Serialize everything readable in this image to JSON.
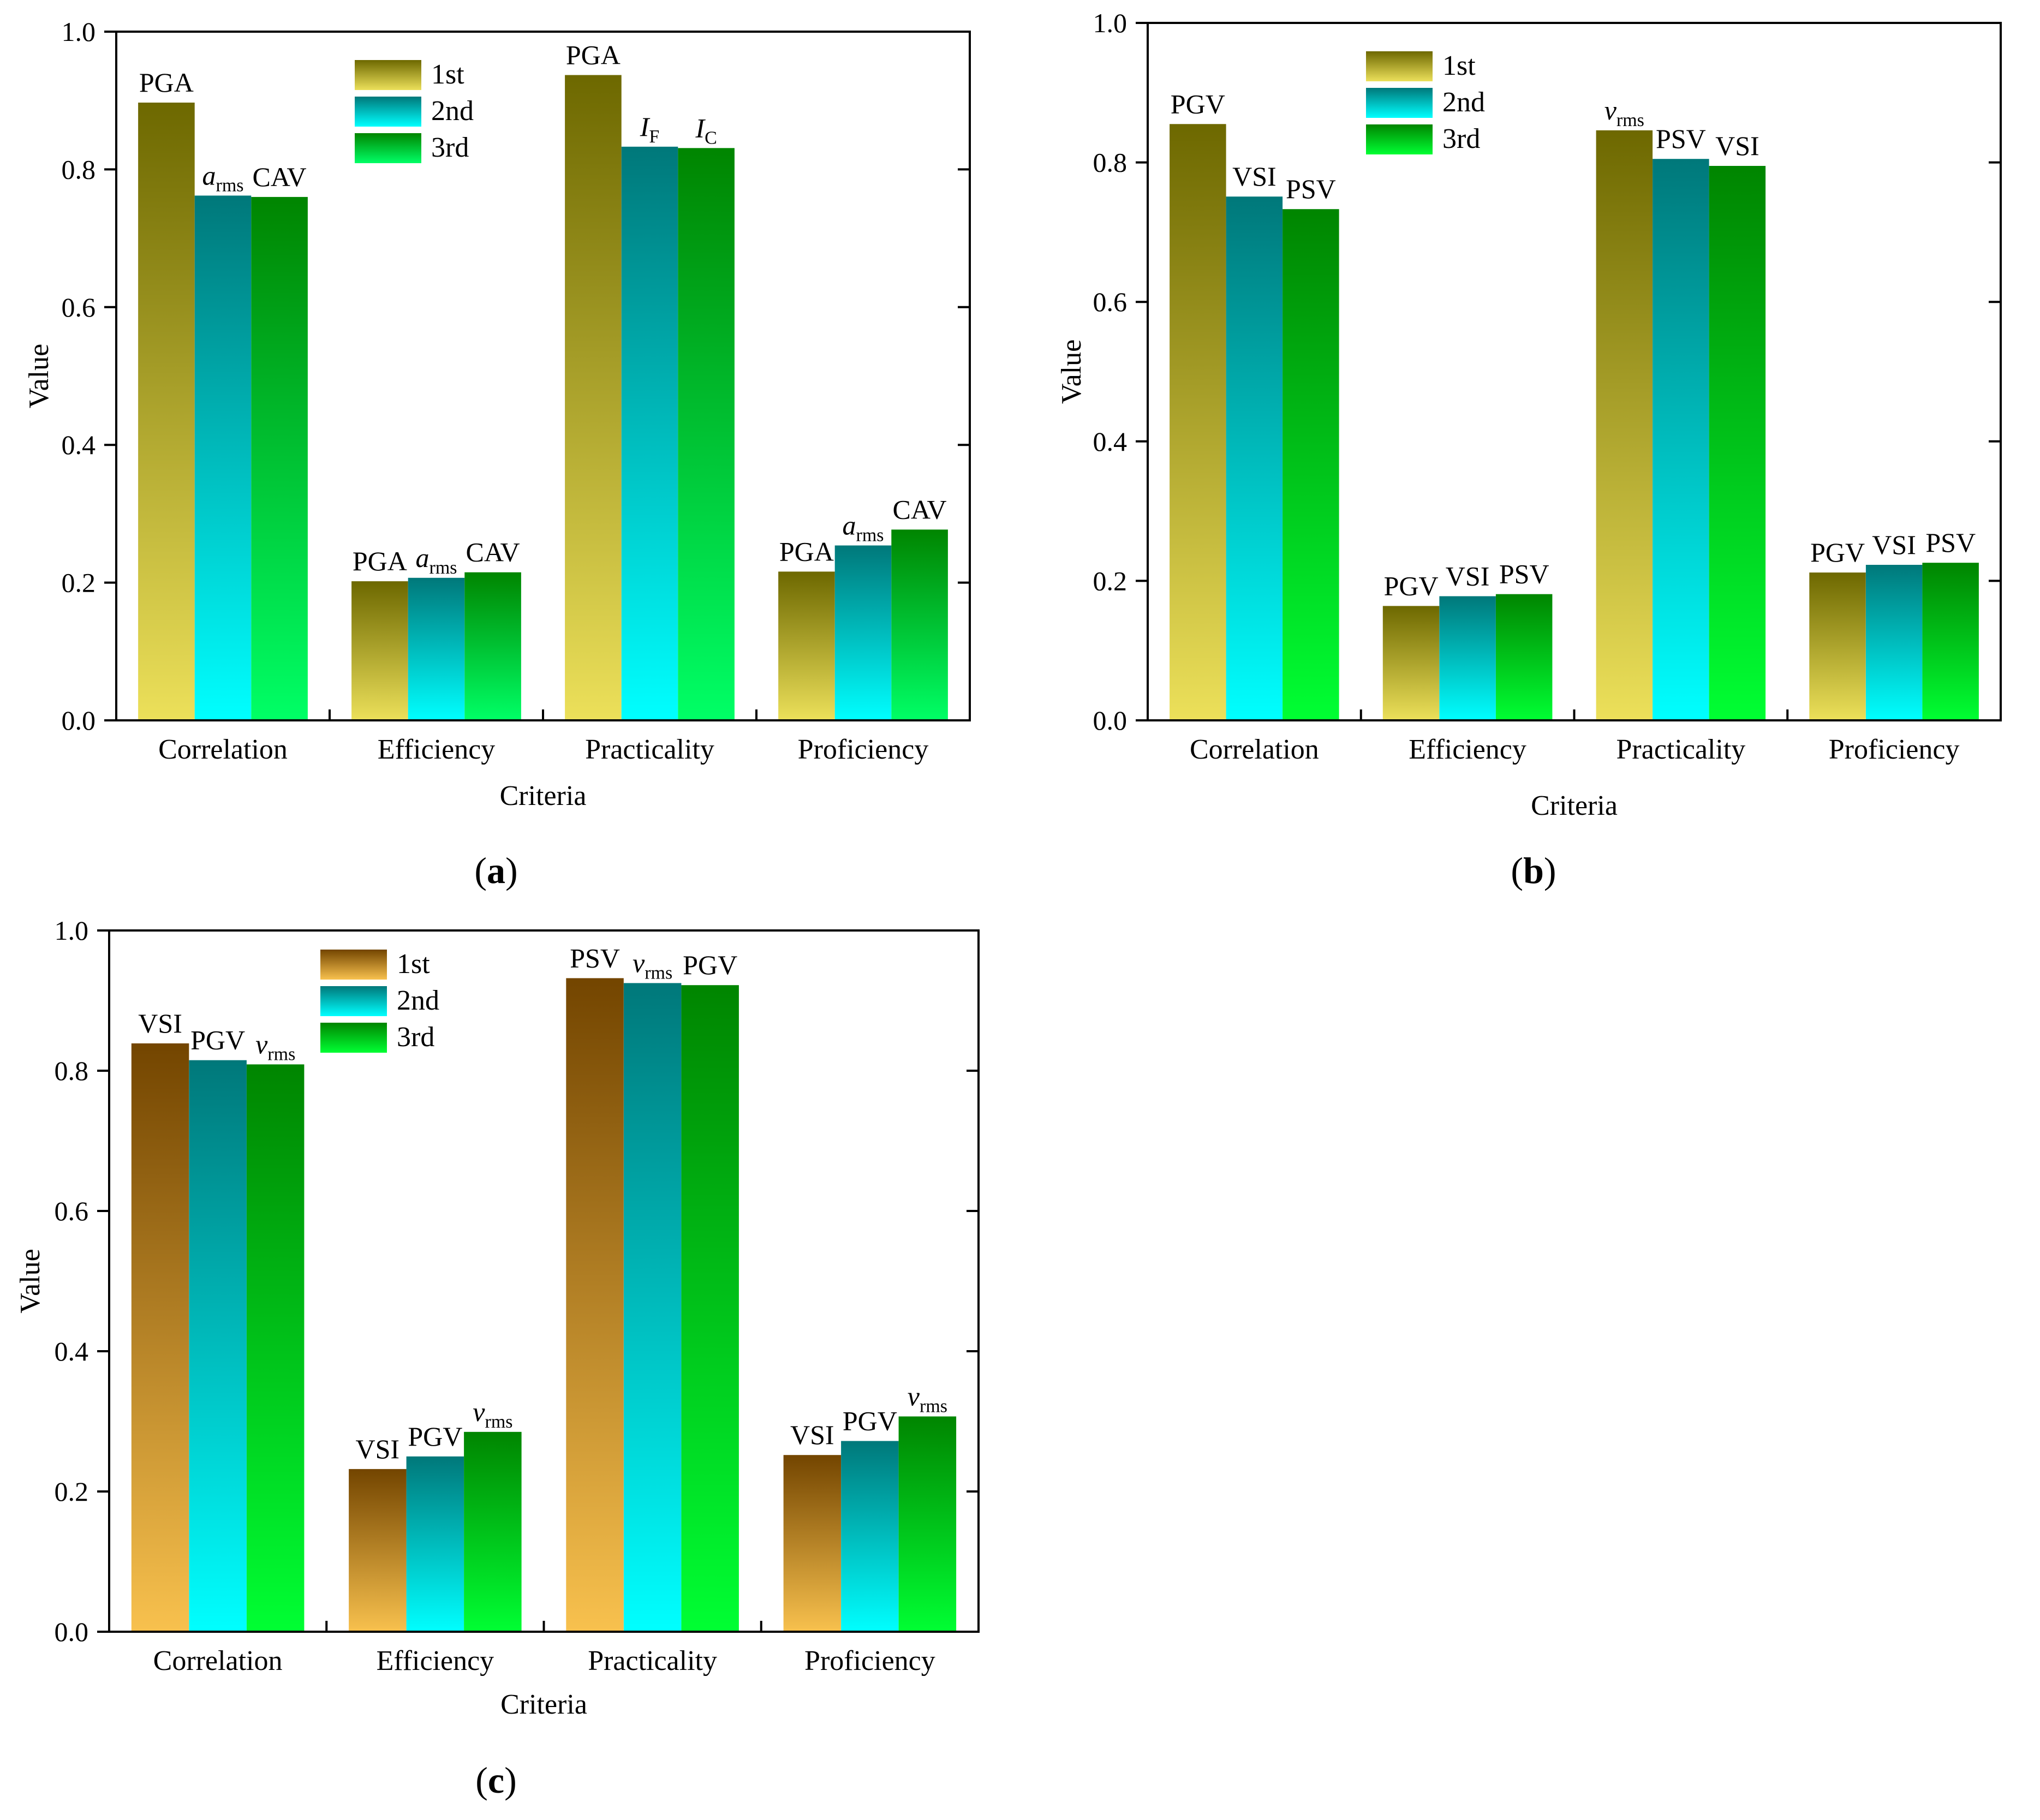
{
  "chart_data": [
    {
      "type": "bar",
      "panel_label": "(a)",
      "title": "",
      "xlabel": "Criteria",
      "ylabel": "Value",
      "ylim": [
        0,
        1.0
      ],
      "yticks": [
        "0.0",
        "0.2",
        "0.4",
        "0.6",
        "0.8",
        "1.0"
      ],
      "legend_position": "top-left-center",
      "categories": [
        "Correlation",
        "Efficiency",
        "Practicality",
        "Proficiency"
      ],
      "series": [
        {
          "name": "1st",
          "values": [
            0.897,
            0.202,
            0.937,
            0.216
          ]
        },
        {
          "name": "2nd",
          "values": [
            0.762,
            0.207,
            0.833,
            0.254
          ]
        },
        {
          "name": "3rd",
          "values": [
            0.76,
            0.215,
            0.831,
            0.277
          ]
        }
      ],
      "bar_labels": [
        [
          {
            "main": "PGA"
          },
          {
            "main": "a",
            "sub": "rms",
            "italic": true
          },
          {
            "main": "CAV"
          }
        ],
        [
          {
            "main": "PGA"
          },
          {
            "main": "a",
            "sub": "rms",
            "italic": true
          },
          {
            "main": "CAV"
          }
        ],
        [
          {
            "main": "PGA"
          },
          {
            "main": "I",
            "sub": "F",
            "italic": true
          },
          {
            "main": "I",
            "sub": "C",
            "italic": true
          }
        ],
        [
          {
            "main": "PGA"
          },
          {
            "main": "a",
            "sub": "rms",
            "italic": true
          },
          {
            "main": "CAV"
          }
        ]
      ]
    },
    {
      "type": "bar",
      "panel_label": "(b)",
      "title": "",
      "xlabel": "Criteria",
      "ylabel": "Value",
      "ylim": [
        0,
        1.0
      ],
      "yticks": [
        "0.0",
        "0.2",
        "0.4",
        "0.6",
        "0.8",
        "1.0"
      ],
      "legend_position": "top-left-center",
      "categories": [
        "Correlation",
        "Efficiency",
        "Practicality",
        "Proficiency"
      ],
      "series": [
        {
          "name": "1st",
          "values": [
            0.855,
            0.164,
            0.846,
            0.212
          ]
        },
        {
          "name": "2nd",
          "values": [
            0.751,
            0.178,
            0.805,
            0.223
          ]
        },
        {
          "name": "3rd",
          "values": [
            0.733,
            0.181,
            0.795,
            0.226
          ]
        }
      ],
      "bar_labels": [
        [
          {
            "main": "PGV"
          },
          {
            "main": "VSI"
          },
          {
            "main": "PSV"
          }
        ],
        [
          {
            "main": "PGV"
          },
          {
            "main": "VSI"
          },
          {
            "main": "PSV"
          }
        ],
        [
          {
            "main": "v",
            "sub": "rms",
            "italic": true
          },
          {
            "main": "PSV"
          },
          {
            "main": "VSI"
          }
        ],
        [
          {
            "main": "PGV"
          },
          {
            "main": "VSI"
          },
          {
            "main": "PSV"
          }
        ]
      ]
    },
    {
      "type": "bar",
      "panel_label": "(c)",
      "title": "",
      "xlabel": "Criteria",
      "ylabel": "Value",
      "ylim": [
        0,
        1.0
      ],
      "yticks": [
        "0.0",
        "0.2",
        "0.4",
        "0.6",
        "0.8",
        "1.0"
      ],
      "legend_position": "top-left-center",
      "categories": [
        "Correlation",
        "Efficiency",
        "Practicality",
        "Proficiency"
      ],
      "series": [
        {
          "name": "1st",
          "values": [
            0.839,
            0.232,
            0.932,
            0.252
          ]
        },
        {
          "name": "2nd",
          "values": [
            0.815,
            0.25,
            0.925,
            0.272
          ]
        },
        {
          "name": "3rd",
          "values": [
            0.809,
            0.285,
            0.922,
            0.307
          ]
        }
      ],
      "bar_labels": [
        [
          {
            "main": "VSI"
          },
          {
            "main": "PGV"
          },
          {
            "main": "v",
            "sub": "rms",
            "italic": true
          }
        ],
        [
          {
            "main": "VSI"
          },
          {
            "main": "PGV"
          },
          {
            "main": "v",
            "sub": "rms",
            "italic": true
          }
        ],
        [
          {
            "main": "PSV"
          },
          {
            "main": "v",
            "sub": "rms",
            "italic": true
          },
          {
            "main": "PGV"
          }
        ],
        [
          {
            "main": "VSI"
          },
          {
            "main": "PGV"
          },
          {
            "main": "v",
            "sub": "rms",
            "italic": true
          }
        ]
      ]
    }
  ],
  "colors": {
    "a": [
      [
        "#6d6800",
        "#ece05a"
      ],
      [
        "#00787a",
        "#00ffff"
      ],
      [
        "#008500",
        "#00ff66"
      ]
    ],
    "b": [
      [
        "#6d6800",
        "#ece05a"
      ],
      [
        "#00787a",
        "#00ffff"
      ],
      [
        "#008500",
        "#00ff33"
      ]
    ],
    "c": [
      [
        "#734500",
        "#f8c14e"
      ],
      [
        "#00787a",
        "#00ffff"
      ],
      [
        "#008500",
        "#00ff33"
      ]
    ]
  }
}
